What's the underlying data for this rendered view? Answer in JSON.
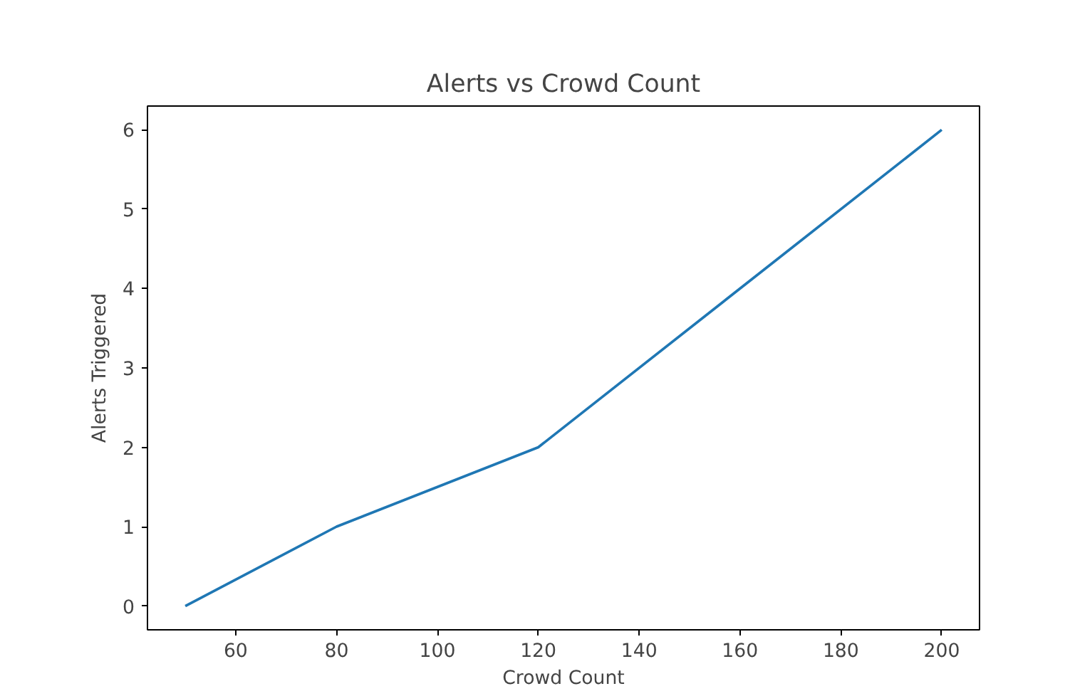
{
  "chart_data": {
    "type": "line",
    "title": "Alerts vs Crowd Count",
    "xlabel": "Crowd Count",
    "ylabel": "Alerts Triggered",
    "x": [
      50,
      80,
      120,
      200
    ],
    "series": [
      {
        "color": "#1f77b4",
        "values": [
          0,
          1,
          2,
          6
        ]
      }
    ],
    "xlim": [
      42.5,
      207.5
    ],
    "ylim": [
      -0.3,
      6.3
    ],
    "xticks": [
      60,
      80,
      100,
      120,
      140,
      160,
      180,
      200
    ],
    "yticks": [
      0,
      1,
      2,
      3,
      4,
      5,
      6
    ],
    "grid": false,
    "marker": "none",
    "line_style": "solid"
  }
}
